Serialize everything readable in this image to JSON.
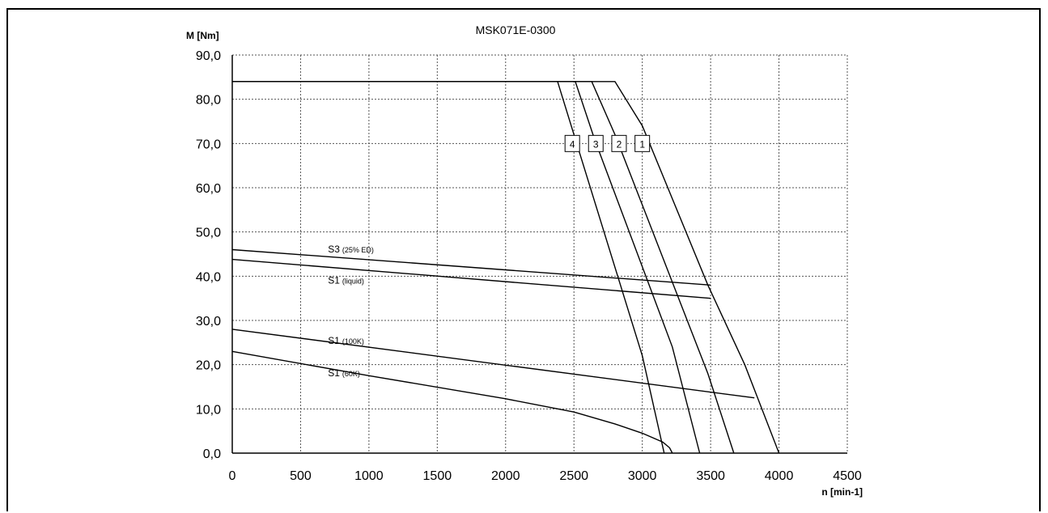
{
  "chart_data": {
    "type": "line",
    "title": "MSK071E-0300",
    "ylabel": "M [Nm]",
    "xlabel": "n [min-1]",
    "xlim": [
      0,
      4500
    ],
    "ylim": [
      0,
      90
    ],
    "x_ticks": [
      "0",
      "500",
      "1000",
      "1500",
      "2000",
      "2500",
      "3000",
      "3500",
      "4000",
      "4500"
    ],
    "y_ticks": [
      "0,0",
      "10,0",
      "20,0",
      "30,0",
      "40,0",
      "50,0",
      "60,0",
      "70,0",
      "80,0",
      "90,0"
    ],
    "grid": true,
    "series": [
      {
        "name": "1",
        "points": [
          [
            0,
            84
          ],
          [
            2800,
            84
          ],
          [
            3000,
            74
          ],
          [
            3480,
            38
          ],
          [
            3750,
            20
          ],
          [
            4000,
            0
          ]
        ]
      },
      {
        "name": "2",
        "points": [
          [
            0,
            84
          ],
          [
            2630,
            84
          ],
          [
            2800,
            72
          ],
          [
            3480,
            18
          ],
          [
            3670,
            0
          ]
        ]
      },
      {
        "name": "3",
        "points": [
          [
            0,
            84
          ],
          [
            2510,
            84
          ],
          [
            2650,
            71
          ],
          [
            3220,
            24
          ],
          [
            3420,
            0
          ]
        ]
      },
      {
        "name": "4",
        "points": [
          [
            0,
            84
          ],
          [
            2380,
            84
          ],
          [
            2520,
            70
          ],
          [
            3000,
            22
          ],
          [
            3160,
            0
          ]
        ]
      },
      {
        "name": "S3 (25% ED)",
        "points": [
          [
            0,
            46
          ],
          [
            3500,
            38
          ]
        ]
      },
      {
        "name": "S1 (liquid)",
        "points": [
          [
            0,
            43.8
          ],
          [
            3500,
            35
          ]
        ]
      },
      {
        "name": "S1 (100K)",
        "points": [
          [
            0,
            28
          ],
          [
            3820,
            12.5
          ]
        ]
      },
      {
        "name": "S1 (60K)",
        "points": [
          [
            0,
            23
          ],
          [
            1000,
            17.5
          ],
          [
            2000,
            12.3
          ],
          [
            2500,
            9.3
          ],
          [
            2800,
            6.6
          ],
          [
            3000,
            4.5
          ],
          [
            3150,
            2.5
          ],
          [
            3200,
            1.2
          ],
          [
            3220,
            0
          ]
        ]
      }
    ],
    "curve_labels": [
      {
        "main": "S3",
        "sub": "(25% ED)"
      },
      {
        "main": "S1",
        "sub": "(liquid)"
      },
      {
        "main": "S1",
        "sub": "(100K)"
      },
      {
        "main": "S1",
        "sub": "(60K)"
      }
    ],
    "box_labels": [
      "4",
      "3",
      "2",
      "1"
    ]
  }
}
